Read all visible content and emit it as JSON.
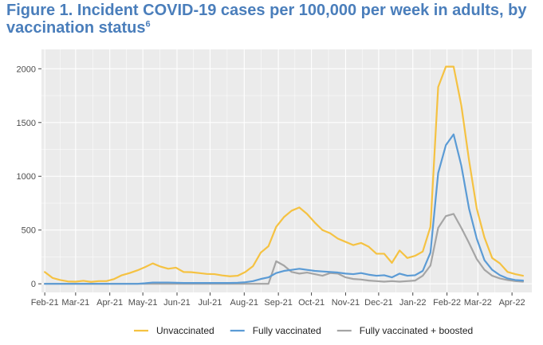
{
  "title": {
    "text": "Figure 1. Incident COVID-19 cases per 100,000 per week in adults, by vaccination status",
    "superscript": "6"
  },
  "colors": {
    "panel_background": "#ebebeb",
    "grid": "#ffffff",
    "title": "#4a7ebb",
    "unvaccinated": "#f5c242",
    "fully_vaccinated": "#5b9bd5",
    "boosted": "#a5a5a5"
  },
  "chart_data": {
    "type": "line",
    "title": "Figure 1. Incident COVID-19 cases per 100,000 per week in adults, by vaccination status",
    "xlabel": "",
    "ylabel": "",
    "x_range": [
      "2021-01-29",
      "2022-04-19"
    ],
    "ylim": [
      -80,
      2180
    ],
    "y_ticks": [
      0,
      500,
      1000,
      1500,
      2000
    ],
    "x_ticks": [
      {
        "date": "2021-02-01",
        "label": "Feb-21"
      },
      {
        "date": "2021-03-01",
        "label": "Mar-21"
      },
      {
        "date": "2021-04-01",
        "label": "Apr-21"
      },
      {
        "date": "2021-05-01",
        "label": "May-21"
      },
      {
        "date": "2021-06-01",
        "label": "Jun-21"
      },
      {
        "date": "2021-07-01",
        "label": "Jul-21"
      },
      {
        "date": "2021-08-01",
        "label": "Aug-21"
      },
      {
        "date": "2021-09-01",
        "label": "Sep-21"
      },
      {
        "date": "2021-10-01",
        "label": "Oct-21"
      },
      {
        "date": "2021-11-01",
        "label": "Nov-21"
      },
      {
        "date": "2021-12-01",
        "label": "Dec-21"
      },
      {
        "date": "2022-01-01",
        "label": "Jan-22"
      },
      {
        "date": "2022-02-01",
        "label": "Feb-22"
      },
      {
        "date": "2022-03-01",
        "label": "Mar-22"
      },
      {
        "date": "2022-04-01",
        "label": "Apr-22"
      }
    ],
    "grid": true,
    "legend_position": "bottom",
    "series": [
      {
        "name": "Unvaccinated",
        "color": "#f5c242",
        "points": [
          [
            "2021-02-01",
            110
          ],
          [
            "2021-02-08",
            55
          ],
          [
            "2021-02-15",
            35
          ],
          [
            "2021-02-22",
            22
          ],
          [
            "2021-03-01",
            20
          ],
          [
            "2021-03-08",
            28
          ],
          [
            "2021-03-15",
            18
          ],
          [
            "2021-03-22",
            25
          ],
          [
            "2021-03-29",
            25
          ],
          [
            "2021-04-05",
            45
          ],
          [
            "2021-04-12",
            80
          ],
          [
            "2021-04-19",
            100
          ],
          [
            "2021-04-26",
            125
          ],
          [
            "2021-05-03",
            155
          ],
          [
            "2021-05-10",
            190
          ],
          [
            "2021-05-17",
            160
          ],
          [
            "2021-05-24",
            140
          ],
          [
            "2021-05-31",
            150
          ],
          [
            "2021-06-07",
            110
          ],
          [
            "2021-06-14",
            108
          ],
          [
            "2021-06-21",
            100
          ],
          [
            "2021-06-28",
            92
          ],
          [
            "2021-07-05",
            90
          ],
          [
            "2021-07-12",
            78
          ],
          [
            "2021-07-19",
            70
          ],
          [
            "2021-07-26",
            75
          ],
          [
            "2021-08-02",
            110
          ],
          [
            "2021-08-09",
            165
          ],
          [
            "2021-08-16",
            290
          ],
          [
            "2021-08-23",
            350
          ],
          [
            "2021-08-30",
            530
          ],
          [
            "2021-09-06",
            620
          ],
          [
            "2021-09-13",
            680
          ],
          [
            "2021-09-20",
            710
          ],
          [
            "2021-09-27",
            650
          ],
          [
            "2021-10-04",
            570
          ],
          [
            "2021-10-11",
            500
          ],
          [
            "2021-10-18",
            470
          ],
          [
            "2021-10-25",
            420
          ],
          [
            "2021-11-01",
            390
          ],
          [
            "2021-11-08",
            360
          ],
          [
            "2021-11-15",
            380
          ],
          [
            "2021-11-22",
            345
          ],
          [
            "2021-11-29",
            280
          ],
          [
            "2021-12-06",
            280
          ],
          [
            "2021-12-13",
            195
          ],
          [
            "2021-12-20",
            310
          ],
          [
            "2021-12-27",
            240
          ],
          [
            "2022-01-03",
            260
          ],
          [
            "2022-01-10",
            300
          ],
          [
            "2022-01-17",
            530
          ],
          [
            "2022-01-24",
            1830
          ],
          [
            "2022-01-31",
            2020
          ],
          [
            "2022-02-07",
            2020
          ],
          [
            "2022-02-14",
            1660
          ],
          [
            "2022-02-21",
            1150
          ],
          [
            "2022-02-28",
            700
          ],
          [
            "2022-03-07",
            430
          ],
          [
            "2022-03-14",
            240
          ],
          [
            "2022-03-21",
            190
          ],
          [
            "2022-03-28",
            110
          ],
          [
            "2022-04-04",
            90
          ],
          [
            "2022-04-11",
            75
          ]
        ]
      },
      {
        "name": "Fully vaccinated",
        "color": "#5b9bd5",
        "points": [
          [
            "2021-02-01",
            0
          ],
          [
            "2021-04-26",
            0
          ],
          [
            "2021-05-03",
            5
          ],
          [
            "2021-05-10",
            12
          ],
          [
            "2021-05-24",
            12
          ],
          [
            "2021-06-07",
            8
          ],
          [
            "2021-07-19",
            8
          ],
          [
            "2021-07-26",
            10
          ],
          [
            "2021-08-02",
            15
          ],
          [
            "2021-08-09",
            25
          ],
          [
            "2021-08-16",
            45
          ],
          [
            "2021-08-23",
            60
          ],
          [
            "2021-08-30",
            100
          ],
          [
            "2021-09-06",
            120
          ],
          [
            "2021-09-13",
            130
          ],
          [
            "2021-09-20",
            140
          ],
          [
            "2021-09-27",
            130
          ],
          [
            "2021-10-04",
            120
          ],
          [
            "2021-10-11",
            115
          ],
          [
            "2021-10-18",
            110
          ],
          [
            "2021-10-25",
            105
          ],
          [
            "2021-11-01",
            95
          ],
          [
            "2021-11-08",
            90
          ],
          [
            "2021-11-15",
            100
          ],
          [
            "2021-11-22",
            85
          ],
          [
            "2021-11-29",
            75
          ],
          [
            "2021-12-06",
            80
          ],
          [
            "2021-12-13",
            60
          ],
          [
            "2021-12-20",
            95
          ],
          [
            "2021-12-27",
            75
          ],
          [
            "2022-01-03",
            80
          ],
          [
            "2022-01-10",
            120
          ],
          [
            "2022-01-17",
            290
          ],
          [
            "2022-01-24",
            1030
          ],
          [
            "2022-01-31",
            1290
          ],
          [
            "2022-02-07",
            1390
          ],
          [
            "2022-02-14",
            1100
          ],
          [
            "2022-02-21",
            700
          ],
          [
            "2022-02-28",
            420
          ],
          [
            "2022-03-07",
            220
          ],
          [
            "2022-03-14",
            130
          ],
          [
            "2022-03-21",
            80
          ],
          [
            "2022-03-28",
            50
          ],
          [
            "2022-04-04",
            35
          ],
          [
            "2022-04-11",
            30
          ]
        ]
      },
      {
        "name": "Fully vaccinated + boosted",
        "color": "#a5a5a5",
        "points": [
          [
            "2021-02-01",
            0
          ],
          [
            "2021-08-23",
            0
          ],
          [
            "2021-08-30",
            210
          ],
          [
            "2021-09-06",
            170
          ],
          [
            "2021-09-13",
            110
          ],
          [
            "2021-09-20",
            95
          ],
          [
            "2021-09-27",
            105
          ],
          [
            "2021-10-04",
            90
          ],
          [
            "2021-10-11",
            75
          ],
          [
            "2021-10-18",
            100
          ],
          [
            "2021-10-25",
            95
          ],
          [
            "2021-11-01",
            60
          ],
          [
            "2021-11-08",
            45
          ],
          [
            "2021-11-15",
            40
          ],
          [
            "2021-11-22",
            30
          ],
          [
            "2021-11-29",
            25
          ],
          [
            "2021-12-06",
            20
          ],
          [
            "2021-12-13",
            25
          ],
          [
            "2021-12-20",
            20
          ],
          [
            "2021-12-27",
            25
          ],
          [
            "2022-01-03",
            30
          ],
          [
            "2022-01-10",
            75
          ],
          [
            "2022-01-17",
            170
          ],
          [
            "2022-01-24",
            520
          ],
          [
            "2022-01-31",
            630
          ],
          [
            "2022-02-07",
            650
          ],
          [
            "2022-02-14",
            520
          ],
          [
            "2022-02-21",
            380
          ],
          [
            "2022-02-28",
            230
          ],
          [
            "2022-03-07",
            130
          ],
          [
            "2022-03-14",
            75
          ],
          [
            "2022-03-21",
            50
          ],
          [
            "2022-03-28",
            35
          ],
          [
            "2022-04-04",
            25
          ],
          [
            "2022-04-11",
            20
          ]
        ]
      }
    ]
  }
}
